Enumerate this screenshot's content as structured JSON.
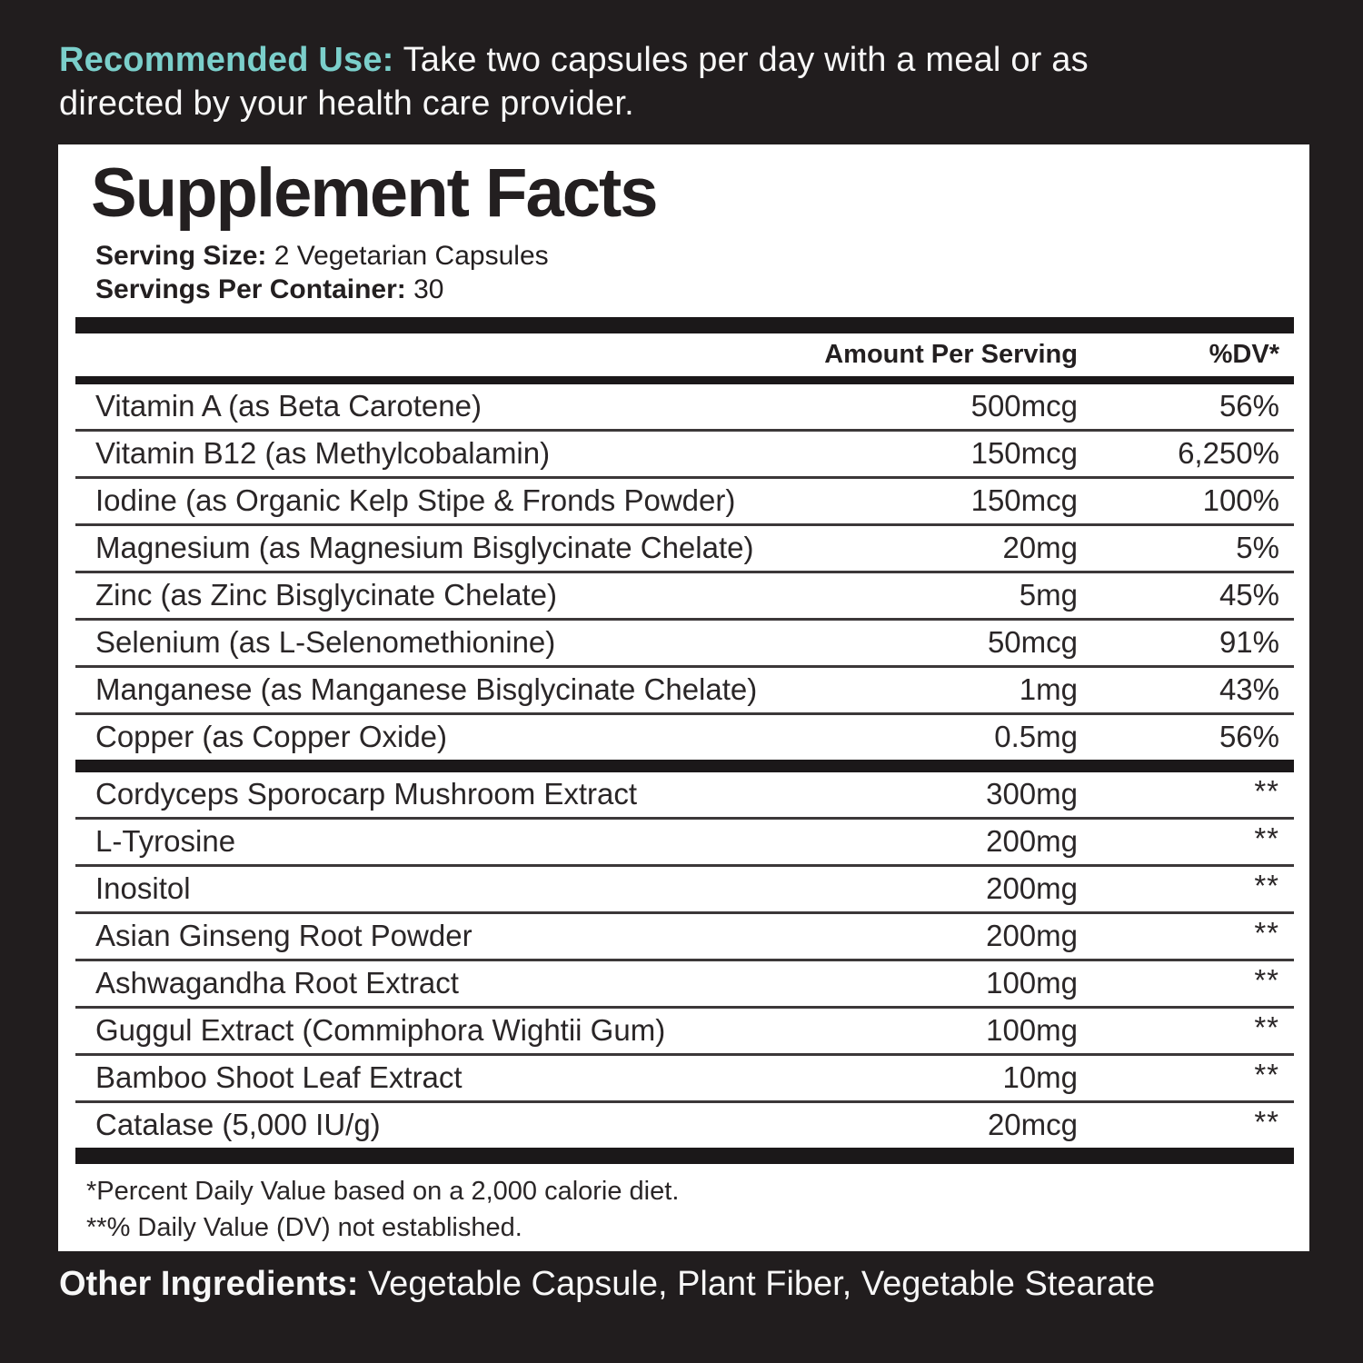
{
  "colors": {
    "background": "#211d1e",
    "accent_teal": "#7bcfcb",
    "panel_background": "#ffffff",
    "ink": "#231f20"
  },
  "usage": {
    "label": "Recommended Use:",
    "line1": "Take two capsules per day with a meal or as",
    "line2": "directed by your health care provider."
  },
  "panel": {
    "title": "Supplement Facts",
    "serving_size": {
      "label": "Serving Size:",
      "value": "2 Vegetarian Capsules"
    },
    "servings_per_container": {
      "label": "Servings Per Container:",
      "value": "30"
    },
    "table": {
      "header": {
        "amount": "Amount Per Serving",
        "dv": "%DV*"
      },
      "sections": [
        {
          "rows": [
            {
              "name": "Vitamin A (as Beta Carotene)",
              "amount": "500mcg",
              "dv": "56%"
            },
            {
              "name": "Vitamin B12 (as Methylcobalamin)",
              "amount": "150mcg",
              "dv": "6,250%"
            },
            {
              "name": "Iodine (as Organic Kelp Stipe & Fronds Powder)",
              "amount": "150mcg",
              "dv": "100%"
            },
            {
              "name": "Magnesium (as Magnesium Bisglycinate Chelate)",
              "amount": "20mg",
              "dv": "5%"
            },
            {
              "name": "Zinc (as Zinc Bisglycinate Chelate)",
              "amount": "5mg",
              "dv": "45%"
            },
            {
              "name": "Selenium (as L-Selenomethionine)",
              "amount": "50mcg",
              "dv": "91%"
            },
            {
              "name": "Manganese (as Manganese Bisglycinate Chelate)",
              "amount": "1mg",
              "dv": "43%"
            },
            {
              "name": "Copper (as Copper Oxide)",
              "amount": "0.5mg",
              "dv": "56%"
            }
          ]
        },
        {
          "rows": [
            {
              "name": "Cordyceps Sporocarp Mushroom Extract",
              "amount": "300mg",
              "dv": "**"
            },
            {
              "name": "L-Tyrosine",
              "amount": "200mg",
              "dv": "**"
            },
            {
              "name": "Inositol",
              "amount": "200mg",
              "dv": "**"
            },
            {
              "name": "Asian Ginseng Root Powder",
              "amount": "200mg",
              "dv": "**"
            },
            {
              "name": "Ashwagandha Root Extract",
              "amount": "100mg",
              "dv": "**"
            },
            {
              "name": "Guggul Extract (Commiphora Wightii Gum)",
              "amount": "100mg",
              "dv": "**"
            },
            {
              "name": "Bamboo Shoot Leaf Extract",
              "amount": "10mg",
              "dv": "**"
            },
            {
              "name": "Catalase (5,000 IU/g)",
              "amount": "20mcg",
              "dv": "**"
            }
          ]
        }
      ]
    },
    "footnotes": [
      "*Percent Daily Value based on a 2,000 calorie diet.",
      "**% Daily Value (DV) not established."
    ]
  },
  "other_ingredients": {
    "label": "Other Ingredients:",
    "text": "Vegetable Capsule, Plant Fiber, Vegetable Stearate"
  }
}
